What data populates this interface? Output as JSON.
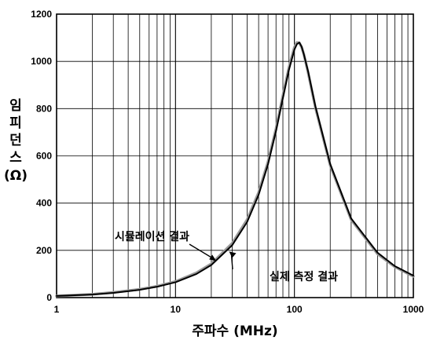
{
  "chart_data": {
    "type": "line",
    "title": "",
    "xlabel": "주파수 (MHz)",
    "ylabel_lines": [
      "임",
      "피",
      "던",
      "스",
      "(Ω)"
    ],
    "xscale": "log",
    "xlim": [
      1,
      1000
    ],
    "ylim": [
      0,
      1200
    ],
    "x_ticks": [
      1,
      10,
      100,
      1000
    ],
    "x_tick_labels": [
      "1",
      "10",
      "100",
      "1000"
    ],
    "y_ticks": [
      0,
      200,
      400,
      600,
      800,
      1000,
      1200
    ],
    "y_tick_labels": [
      "0",
      "200",
      "400",
      "600",
      "800",
      "1000",
      "1200"
    ],
    "grid": true,
    "series": [
      {
        "name": "실제 측정 결과",
        "color": "#9a9a9a",
        "x": [
          1,
          2,
          3,
          5,
          7,
          10,
          15,
          20,
          30,
          40,
          50,
          60,
          70,
          80,
          90,
          100,
          105,
          110,
          115,
          120,
          130,
          150,
          200,
          300,
          500,
          700,
          1000
        ],
        "y": [
          7,
          14,
          22,
          35,
          48,
          68,
          105,
          143,
          230,
          330,
          445,
          575,
          715,
          855,
          975,
          1060,
          1080,
          1078,
          1060,
          1030,
          955,
          805,
          560,
          330,
          185,
          130,
          90
        ]
      },
      {
        "name": "시뮬레이션 결과",
        "color": "#000000",
        "x": [
          1,
          2,
          3,
          5,
          7,
          10,
          15,
          20,
          30,
          40,
          50,
          60,
          70,
          80,
          90,
          100,
          105,
          110,
          115,
          120,
          130,
          150,
          200,
          300,
          500,
          700,
          1000
        ],
        "y": [
          7,
          13,
          20,
          33,
          46,
          65,
          100,
          138,
          222,
          320,
          435,
          565,
          705,
          845,
          965,
          1050,
          1073,
          1080,
          1062,
          1030,
          960,
          810,
          565,
          335,
          190,
          133,
          93
        ]
      }
    ],
    "annotations": [
      {
        "text": "시뮬레이션 결과",
        "points_to_x": 22,
        "points_to_y": 155
      },
      {
        "text": "실제 측정 결과",
        "points_to_x": 30,
        "points_to_y": 215
      }
    ]
  }
}
